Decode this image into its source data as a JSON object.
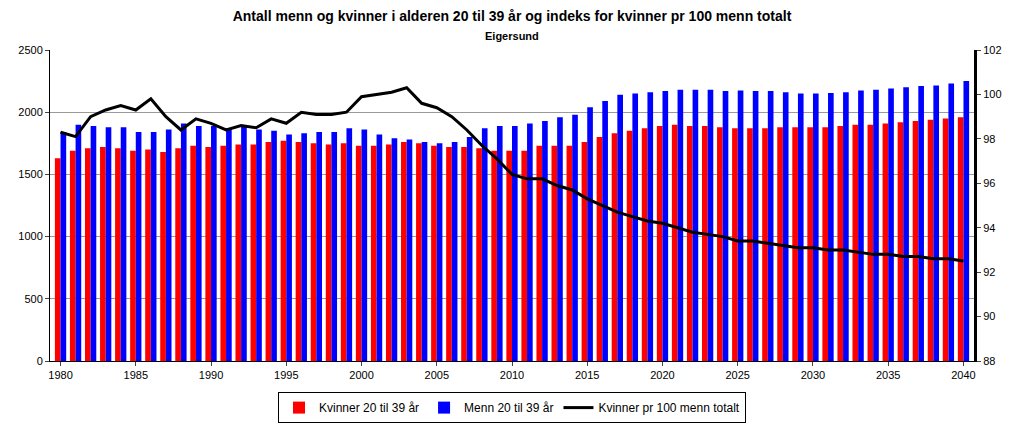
{
  "chart_data": {
    "type": "bar",
    "title": "Antall menn og kvinner i alderen 20 til 39 år og indeks for kvinner pr 100 menn totalt",
    "subtitle": "Eigersund",
    "x": [
      1980,
      1981,
      1982,
      1983,
      1984,
      1985,
      1986,
      1987,
      1988,
      1989,
      1990,
      1991,
      1992,
      1993,
      1994,
      1995,
      1996,
      1997,
      1998,
      1999,
      2000,
      2001,
      2002,
      2003,
      2004,
      2005,
      2006,
      2007,
      2008,
      2009,
      2010,
      2011,
      2012,
      2013,
      2014,
      2015,
      2016,
      2017,
      2018,
      2019,
      2020,
      2021,
      2022,
      2023,
      2024,
      2025,
      2026,
      2027,
      2028,
      2029,
      2030,
      2031,
      2032,
      2033,
      2034,
      2035,
      2036,
      2037,
      2038,
      2039,
      2040
    ],
    "series": [
      {
        "name": "Kvinner 20 til 39 år",
        "type": "bar",
        "color": "#ff0000",
        "values": [
          1630,
          1690,
          1710,
          1720,
          1710,
          1690,
          1700,
          1680,
          1710,
          1730,
          1720,
          1730,
          1740,
          1740,
          1760,
          1770,
          1760,
          1750,
          1740,
          1750,
          1730,
          1730,
          1740,
          1760,
          1750,
          1730,
          1720,
          1720,
          1710,
          1690,
          1690,
          1690,
          1730,
          1730,
          1730,
          1760,
          1800,
          1830,
          1850,
          1870,
          1890,
          1900,
          1890,
          1890,
          1880,
          1870,
          1870,
          1870,
          1880,
          1880,
          1880,
          1880,
          1890,
          1900,
          1900,
          1910,
          1920,
          1930,
          1940,
          1950,
          1960
        ]
      },
      {
        "name": "Menn 20 til 39 år",
        "type": "bar",
        "color": "#0000ff",
        "values": [
          1840,
          1900,
          1890,
          1880,
          1880,
          1840,
          1840,
          1860,
          1910,
          1890,
          1890,
          1870,
          1890,
          1860,
          1850,
          1820,
          1830,
          1840,
          1840,
          1870,
          1860,
          1820,
          1790,
          1780,
          1760,
          1750,
          1760,
          1800,
          1870,
          1890,
          1890,
          1910,
          1930,
          1960,
          1980,
          2040,
          2090,
          2140,
          2150,
          2160,
          2170,
          2180,
          2180,
          2180,
          2170,
          2175,
          2170,
          2170,
          2160,
          2150,
          2150,
          2155,
          2160,
          2175,
          2180,
          2190,
          2200,
          2210,
          2215,
          2230,
          2250
        ]
      },
      {
        "name": "Kvinner pr 100 menn totalt",
        "type": "line",
        "color": "#000000",
        "axis": "y2",
        "values": [
          98.3,
          98.1,
          99.0,
          99.3,
          99.5,
          99.3,
          99.8,
          99.0,
          98.4,
          98.9,
          98.7,
          98.4,
          98.6,
          98.5,
          98.9,
          98.7,
          99.2,
          99.1,
          99.1,
          99.2,
          99.9,
          100.0,
          100.1,
          100.3,
          99.6,
          99.4,
          99.0,
          98.4,
          97.7,
          97.1,
          96.4,
          96.2,
          96.2,
          95.9,
          95.7,
          95.3,
          95.0,
          94.7,
          94.5,
          94.3,
          94.2,
          94.0,
          93.8,
          93.7,
          93.6,
          93.4,
          93.4,
          93.3,
          93.2,
          93.1,
          93.1,
          93.0,
          93.0,
          92.9,
          92.8,
          92.8,
          92.7,
          92.7,
          92.6,
          92.6,
          92.5
        ]
      }
    ],
    "xlim": [
      1979.3,
      2040.7
    ],
    "xticks": [
      1980,
      1985,
      1990,
      1995,
      2000,
      2005,
      2010,
      2015,
      2020,
      2025,
      2030,
      2035,
      2040
    ],
    "ylim": [
      0,
      2500
    ],
    "yticks": [
      0,
      500,
      1000,
      1500,
      2000,
      2500
    ],
    "y2lim": [
      88,
      102
    ],
    "y2ticks": [
      88,
      90,
      92,
      94,
      96,
      98,
      100,
      102
    ],
    "grid": true,
    "legend": "bottom"
  }
}
